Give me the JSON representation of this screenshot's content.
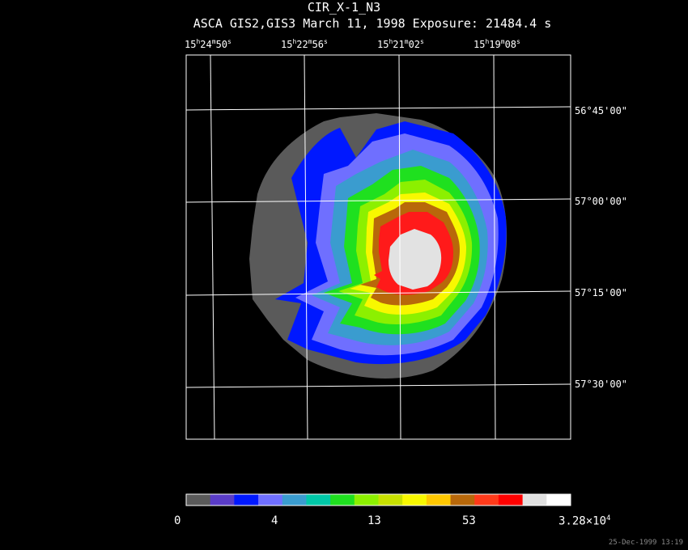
{
  "header": {
    "title": "CIR_X-1_N3",
    "subtitle": "ASCA GIS2,GIS3 March 11, 1998 Exposure: 21484.4 s"
  },
  "ra_ticks": [
    {
      "h": "15",
      "m": "24",
      "s": "50"
    },
    {
      "h": "15",
      "m": "22",
      "s": "56"
    },
    {
      "h": "15",
      "m": "21",
      "s": "02"
    },
    {
      "h": "15",
      "m": "19",
      "s": "08"
    }
  ],
  "dec_ticks": [
    "56°45'00\"",
    "57°00'00\"",
    "57°15'00\"",
    "57°30'00\""
  ],
  "colorbar": {
    "labels": [
      "0",
      "4",
      "13",
      "53",
      "3.28×10"
    ],
    "exponent": "4",
    "colors": [
      "#5a5a5a",
      "#5a3cc8",
      "#0018ff",
      "#6f6fff",
      "#3a9ccf",
      "#00c8a8",
      "#1fe01f",
      "#8cf000",
      "#c8e000",
      "#f8f800",
      "#ffc800",
      "#b8680a",
      "#ff3a1a",
      "#ff0000",
      "#e0e0e0",
      "#ffffff"
    ]
  },
  "footer": {
    "timestamp": "25-Dec-1999 13:19"
  }
}
